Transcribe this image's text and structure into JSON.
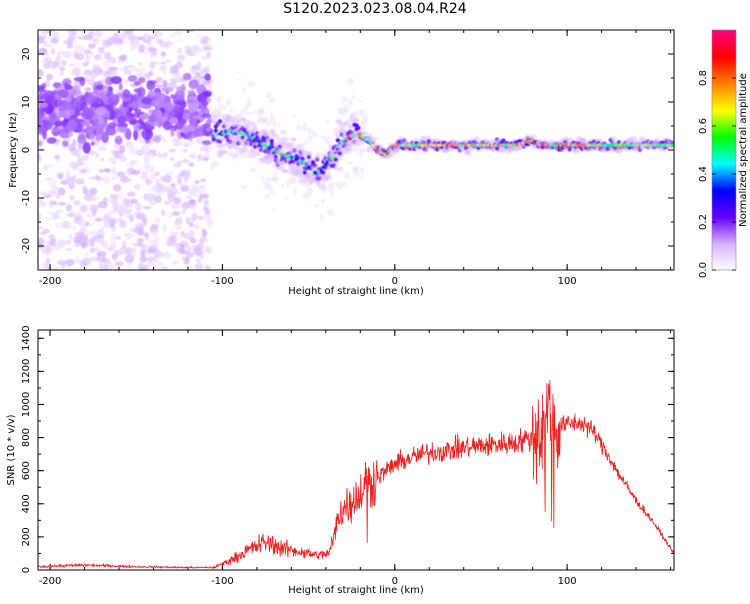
{
  "figure": {
    "title": "S120.2023.023.08.04.R24"
  },
  "chart_data": [
    {
      "type": "heatmap",
      "xlabel": "Height of straight line (km)",
      "ylabel": "Frequency (Hz)",
      "xlim": [
        -207,
        162
      ],
      "ylim": [
        -25,
        25
      ],
      "xticks": [
        -200,
        -100,
        0,
        100
      ],
      "yticks": [
        -20,
        -10,
        0,
        10,
        20
      ],
      "colorbar": {
        "label": "Normalized spectral amplitude",
        "range": [
          0.0,
          1.0
        ],
        "ticks": [
          "0.0",
          "0.2",
          "0.4",
          "0.6",
          "0.8"
        ],
        "tick_values": [
          0.0,
          0.2,
          0.4,
          0.6,
          0.8
        ],
        "colors": [
          "#ffffff",
          "#d6b3ff",
          "#6600ff",
          "#0000ff",
          "#00ffff",
          "#00ff00",
          "#ffff00",
          "#ff8000",
          "#ff0000",
          "#ff0080"
        ]
      },
      "ridge": {
        "description_values": "dominant frequency vs height",
        "x": [
          -105,
          -95,
          -85,
          -75,
          -65,
          -55,
          -45,
          -40,
          -35,
          -30,
          -25,
          -20,
          -15,
          -10,
          -5,
          0,
          10,
          30,
          50,
          70,
          80,
          85,
          90,
          100,
          120,
          140,
          162
        ],
        "y": [
          3,
          4,
          3,
          1,
          -1,
          -2,
          -5,
          -3,
          -1,
          2,
          3,
          3,
          2,
          0,
          -1,
          1,
          1,
          1,
          1,
          1,
          2,
          1,
          1,
          1,
          1,
          1,
          1
        ]
      }
    },
    {
      "type": "line",
      "xlabel": "Height of straight line (km)",
      "ylabel": "SNR (10 * v/v)",
      "xlim": [
        -207,
        162
      ],
      "ylim": [
        0,
        1450
      ],
      "xticks": [
        -200,
        -100,
        0,
        100
      ],
      "yticks": [
        0,
        200,
        400,
        600,
        800,
        1000,
        1200,
        1400
      ],
      "color": "#ee2020",
      "series": [
        {
          "x": [
            -207,
            -180,
            -150,
            -120,
            -105,
            -95,
            -85,
            -75,
            -65,
            -55,
            -45,
            -38,
            -33,
            -28,
            -20,
            -15,
            -10,
            -5,
            0,
            10,
            20,
            30,
            40,
            50,
            60,
            70,
            80,
            85,
            88,
            90,
            92,
            95,
            100,
            105,
            110,
            115,
            120,
            130,
            140,
            150,
            162
          ],
          "y": [
            20,
            30,
            20,
            15,
            15,
            60,
            120,
            170,
            130,
            110,
            90,
            100,
            300,
            400,
            460,
            520,
            560,
            600,
            640,
            680,
            710,
            720,
            740,
            750,
            760,
            770,
            800,
            850,
            900,
            950,
            900,
            870,
            880,
            890,
            880,
            840,
            760,
            580,
            420,
            290,
            100
          ]
        }
      ]
    }
  ]
}
